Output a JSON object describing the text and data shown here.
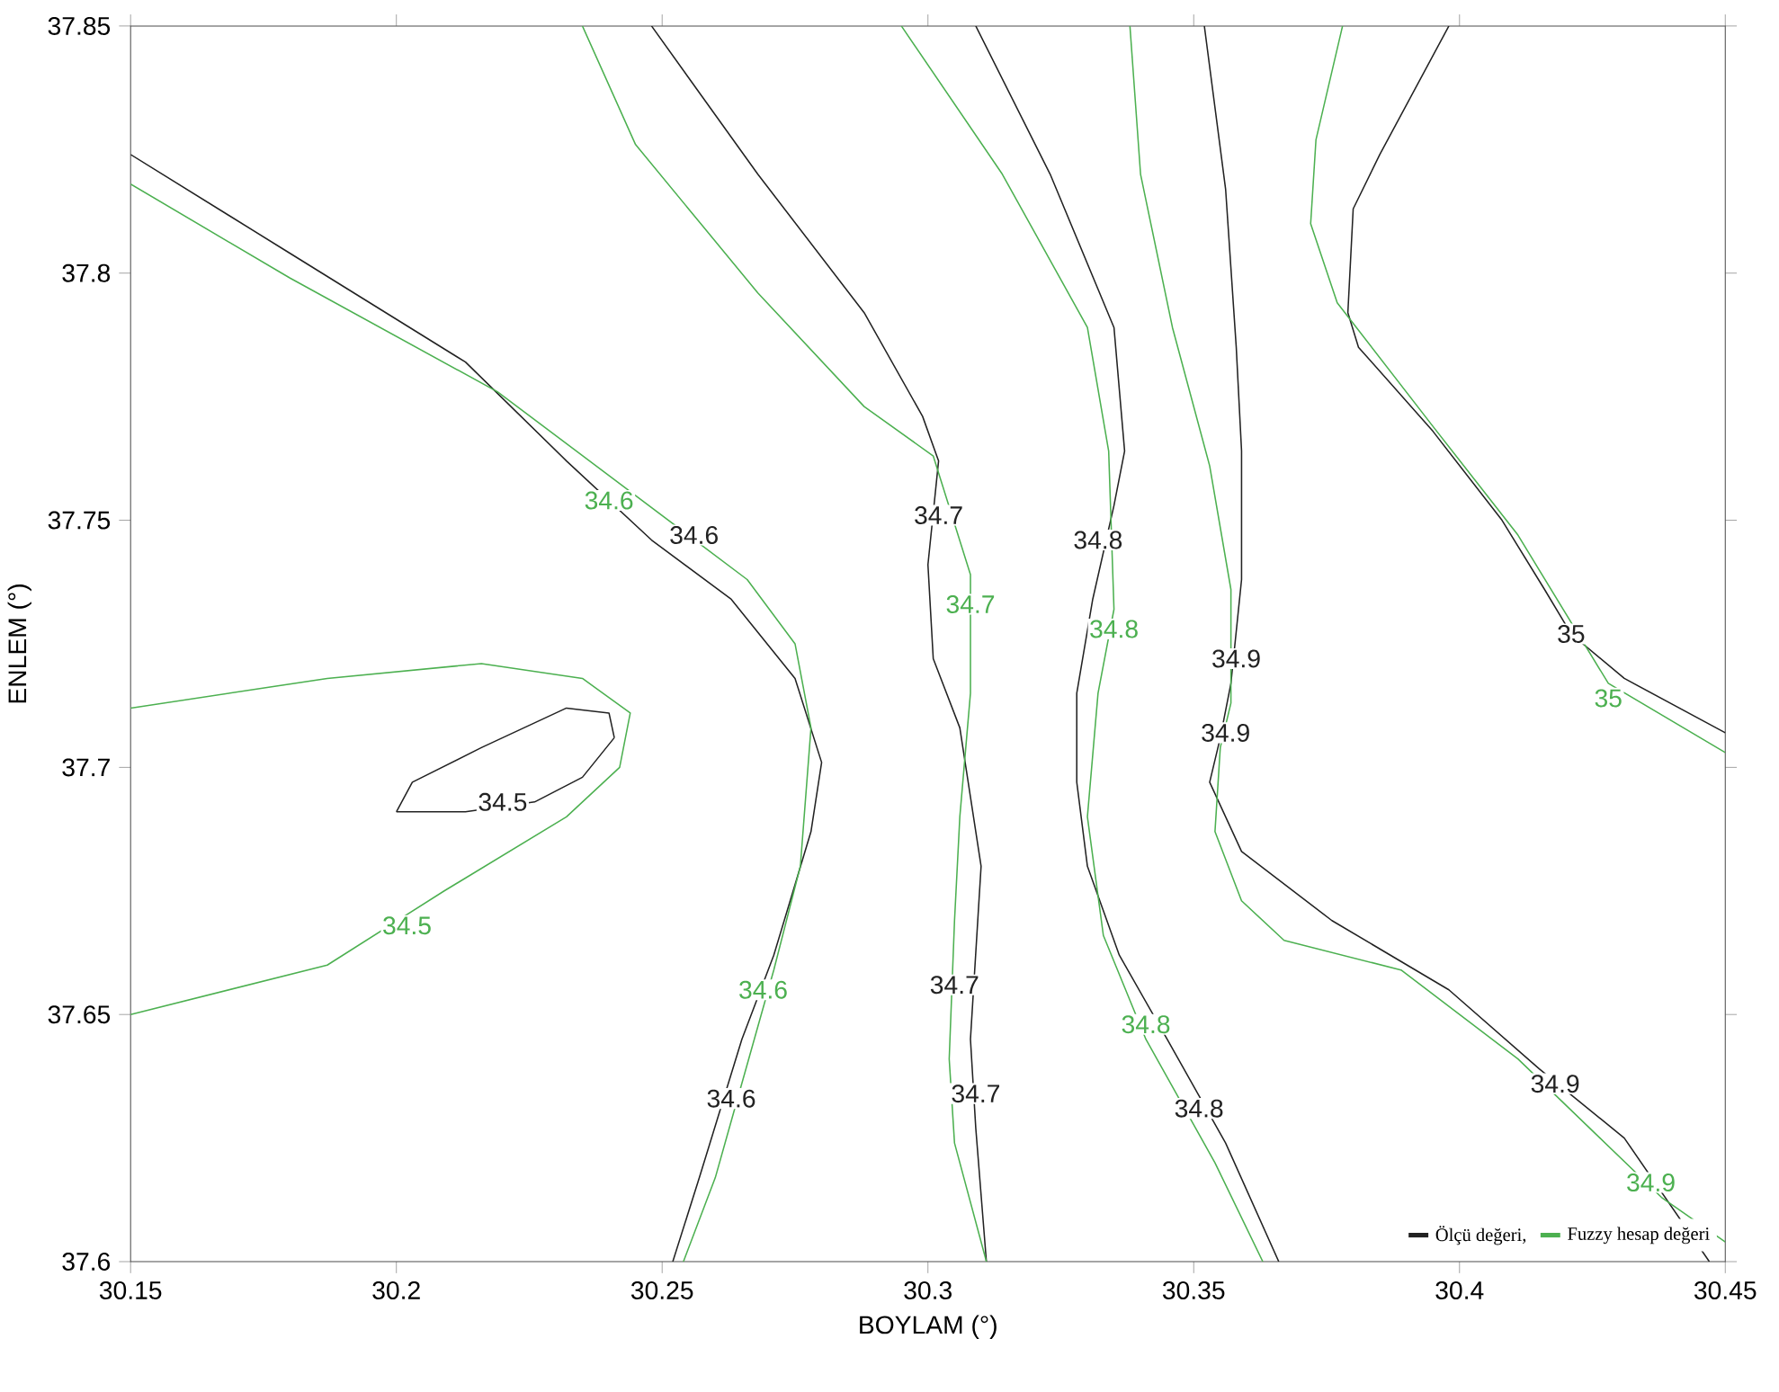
{
  "chart_data": {
    "type": "line",
    "xlabel": "BOYLAM (°)",
    "ylabel": "ENLEM (°)",
    "xlim": [
      30.15,
      30.45
    ],
    "ylim": [
      37.6,
      37.85
    ],
    "xticks": [
      30.15,
      30.2,
      30.25,
      30.3,
      30.35,
      30.4,
      30.45
    ],
    "yticks": [
      37.6,
      37.65,
      37.7,
      37.75,
      37.8,
      37.85
    ],
    "legend": "bottom right",
    "line_style": "solid",
    "series": [
      {
        "name": "Ölçü değeri,",
        "color": "#222222",
        "x": [
          30.15,
          30.18,
          30.213,
          30.232,
          30.248,
          30.263,
          30.275,
          30.28,
          30.278,
          30.271,
          30.265,
          30.257,
          30.252,
          null,
          30.248,
          30.268,
          30.288,
          30.299,
          30.302,
          30.3,
          30.301,
          30.306,
          30.307,
          30.31,
          30.308,
          30.309,
          30.311,
          null,
          30.309,
          30.323,
          30.335,
          30.337,
          30.335,
          30.331,
          30.328,
          30.328,
          30.33,
          30.336,
          30.345,
          30.356,
          30.366,
          null,
          30.352,
          30.356,
          30.358,
          30.359,
          30.359,
          30.357,
          30.355,
          30.353,
          30.359,
          30.376,
          30.398,
          30.415,
          30.431,
          30.447,
          null,
          30.398,
          30.385,
          30.38,
          30.379,
          30.381,
          30.395,
          30.408,
          30.416,
          30.421,
          30.431,
          30.45,
          null,
          30.2,
          30.203,
          30.216,
          30.232,
          30.24,
          30.241,
          null,
          30.241,
          30.235,
          30.226,
          30.213,
          30.2
        ],
        "values": [
          37.824,
          37.804,
          37.782,
          37.762,
          37.746,
          37.734,
          37.718,
          37.701,
          37.687,
          37.662,
          37.645,
          37.617,
          37.6,
          null,
          37.85,
          37.82,
          37.792,
          37.771,
          37.762,
          37.741,
          37.722,
          37.708,
          37.701,
          37.68,
          37.645,
          37.627,
          37.6,
          null,
          37.85,
          37.82,
          37.789,
          37.764,
          37.753,
          37.734,
          37.715,
          37.697,
          37.68,
          37.662,
          37.645,
          37.624,
          37.6,
          null,
          37.85,
          37.817,
          37.785,
          37.764,
          37.738,
          37.717,
          37.706,
          37.697,
          37.683,
          37.669,
          37.655,
          37.639,
          37.625,
          37.6,
          null,
          37.85,
          37.824,
          37.813,
          37.792,
          37.785,
          37.768,
          37.75,
          37.736,
          37.727,
          37.718,
          37.707,
          null,
          37.691,
          37.697,
          37.704,
          37.712,
          37.711,
          37.706,
          null,
          37.706,
          37.698,
          37.693,
          37.691,
          37.691
        ]
      },
      {
        "name": "Fuzzy hesap değeri",
        "color": "#4cb050",
        "x": [
          30.15,
          30.187,
          30.216,
          30.235,
          30.244,
          30.242,
          30.232,
          30.209,
          30.187,
          30.15,
          null,
          30.15,
          30.18,
          30.219,
          30.245,
          30.266,
          30.275,
          30.278,
          30.276,
          30.271,
          30.26,
          30.254,
          null,
          30.235,
          30.245,
          30.268,
          30.288,
          30.301,
          30.308,
          30.308,
          30.306,
          30.305,
          30.304,
          30.305,
          30.311,
          null,
          30.295,
          30.314,
          30.33,
          30.334,
          30.335,
          30.332,
          30.33,
          30.333,
          30.341,
          30.354,
          30.363,
          null,
          30.338,
          30.34,
          30.346,
          30.353,
          30.357,
          30.357,
          30.355,
          30.354,
          30.359,
          30.367,
          30.389,
          30.411,
          30.438,
          30.45,
          null,
          30.378,
          30.373,
          30.372,
          30.377,
          30.395,
          30.411,
          30.428,
          30.45
        ],
        "values": [
          37.712,
          37.718,
          37.721,
          37.718,
          37.711,
          37.7,
          37.69,
          37.675,
          37.66,
          37.65,
          null,
          37.818,
          37.799,
          37.776,
          37.755,
          37.738,
          37.725,
          37.708,
          37.68,
          37.659,
          37.617,
          37.6,
          null,
          37.85,
          37.826,
          37.796,
          37.773,
          37.763,
          37.739,
          37.715,
          37.69,
          37.669,
          37.641,
          37.624,
          37.6,
          null,
          37.85,
          37.82,
          37.789,
          37.764,
          37.732,
          37.715,
          37.69,
          37.666,
          37.645,
          37.62,
          37.6,
          null,
          37.85,
          37.82,
          37.789,
          37.761,
          37.736,
          37.713,
          37.704,
          37.687,
          37.673,
          37.665,
          37.659,
          37.641,
          37.613,
          37.604,
          null,
          37.85,
          37.827,
          37.81,
          37.794,
          37.769,
          37.747,
          37.717,
          37.703
        ]
      }
    ],
    "annotations": [
      {
        "text": "34.5",
        "x": 30.22,
        "y": 37.693
      },
      {
        "text": "34.6",
        "x": 30.24,
        "y": 37.754
      },
      {
        "text": "34.6",
        "x": 30.263,
        "y": 37.633
      },
      {
        "text": "34.7",
        "x": 30.302,
        "y": 37.751
      },
      {
        "text": "34.7",
        "x": 30.309,
        "y": 37.634
      },
      {
        "text": "34.8",
        "x": 30.332,
        "y": 37.746
      },
      {
        "text": "34.8",
        "x": 30.351,
        "y": 37.631
      },
      {
        "text": "34.9",
        "x": 30.358,
        "y": 37.722
      },
      {
        "text": "34.9",
        "x": 30.418,
        "y": 37.636
      },
      {
        "text": "35",
        "x": 30.421,
        "y": 37.727
      },
      {
        "text": "34.5",
        "x": 30.202,
        "y": 37.668
      },
      {
        "text": "34.6",
        "x": 30.256,
        "y": 37.747
      },
      {
        "text": "34.6",
        "x": 30.269,
        "y": 37.655
      },
      {
        "text": "34.7",
        "x": 30.308,
        "y": 37.733
      },
      {
        "text": "34.7",
        "x": 30.305,
        "y": 37.656
      },
      {
        "text": "34.8",
        "x": 30.335,
        "y": 37.728
      },
      {
        "text": "34.8",
        "x": 30.341,
        "y": 37.648
      },
      {
        "text": "34.9",
        "x": 30.356,
        "y": 37.707
      },
      {
        "text": "34.9",
        "x": 30.436,
        "y": 37.616
      },
      {
        "text": "35",
        "x": 30.428,
        "y": 37.714
      }
    ]
  }
}
